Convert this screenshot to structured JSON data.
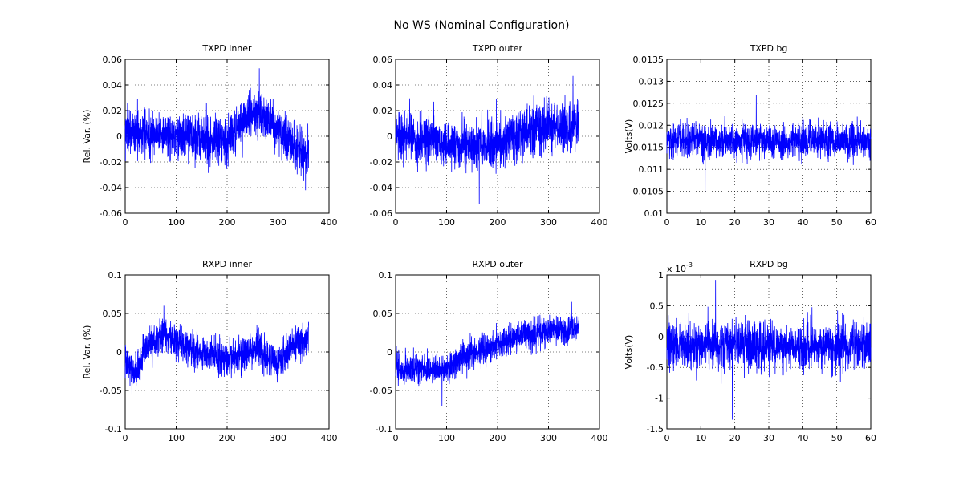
{
  "figure": {
    "title": "No WS (Nominal Configuration)"
  },
  "colors": {
    "trace": "#0000ff",
    "axes": "#000000",
    "background": "#ffffff"
  },
  "chart_data": [
    {
      "type": "line",
      "title": "TXPD inner",
      "ylabel": "Rel. Var. (%)",
      "xlim": [
        0,
        400
      ],
      "ylim": [
        -0.06,
        0.06
      ],
      "xticks": [
        "0",
        "100",
        "200",
        "300",
        "400"
      ],
      "yticks": [
        "-0.06",
        "-0.04",
        "-0.02",
        "0",
        "0.02",
        "0.04",
        "0.06"
      ],
      "grid": true,
      "series": [
        {
          "x_range": [
            0,
            360
          ],
          "trend": [
            [
              0,
              0.003
            ],
            [
              50,
              0.002
            ],
            [
              100,
              0.001
            ],
            [
              150,
              -0.002
            ],
            [
              200,
              -0.004
            ],
            [
              230,
              0.012
            ],
            [
              260,
              0.018
            ],
            [
              290,
              0.01
            ],
            [
              320,
              -0.005
            ],
            [
              360,
              -0.014
            ]
          ],
          "noise": 0.016,
          "peak_max": 0.053,
          "peak_min": -0.042
        }
      ]
    },
    {
      "type": "line",
      "title": "TXPD outer",
      "ylabel": "",
      "xlim": [
        0,
        400
      ],
      "ylim": [
        -0.06,
        0.06
      ],
      "xticks": [
        "0",
        "100",
        "200",
        "300",
        "400"
      ],
      "yticks": [
        "-0.06",
        "-0.04",
        "-0.02",
        "0",
        "0.02",
        "0.04",
        "0.06"
      ],
      "grid": true,
      "series": [
        {
          "x_range": [
            0,
            360
          ],
          "trend": [
            [
              0,
              0.002
            ],
            [
              50,
              -0.002
            ],
            [
              100,
              -0.006
            ],
            [
              150,
              -0.008
            ],
            [
              200,
              -0.005
            ],
            [
              250,
              0.002
            ],
            [
              300,
              0.007
            ],
            [
              360,
              0.009
            ]
          ],
          "noise": 0.017,
          "peak_max": 0.047,
          "peak_min": -0.053
        }
      ]
    },
    {
      "type": "line",
      "title": "TXPD bg",
      "ylabel": "Volts(V)",
      "xlim": [
        0,
        60
      ],
      "ylim": [
        0.01,
        0.0135
      ],
      "xticks": [
        "0",
        "10",
        "20",
        "30",
        "40",
        "50",
        "60"
      ],
      "yticks": [
        "0.01",
        "0.0105",
        "0.011",
        "0.0115",
        "0.012",
        "0.0125",
        "0.013",
        "0.0135"
      ],
      "grid": true,
      "series": [
        {
          "x_range": [
            0,
            60
          ],
          "trend": [
            [
              0,
              0.01165
            ],
            [
              60,
              0.01163
            ]
          ],
          "noise": 0.00035,
          "peak_max": 0.01268,
          "peak_min": 0.01048
        }
      ]
    },
    {
      "type": "line",
      "title": "RXPD inner",
      "ylabel": "Rel. Var. (%)",
      "xlim": [
        0,
        400
      ],
      "ylim": [
        -0.1,
        0.1
      ],
      "xticks": [
        "0",
        "100",
        "200",
        "300",
        "400"
      ],
      "yticks": [
        "-0.1",
        "-0.05",
        "0",
        "0.05",
        "0.1"
      ],
      "grid": true,
      "series": [
        {
          "x_range": [
            0,
            360
          ],
          "trend": [
            [
              0,
              -0.005
            ],
            [
              20,
              -0.03
            ],
            [
              40,
              0.005
            ],
            [
              80,
              0.025
            ],
            [
              120,
              0.005
            ],
            [
              200,
              -0.01
            ],
            [
              260,
              0.005
            ],
            [
              300,
              -0.015
            ],
            [
              330,
              0.01
            ],
            [
              360,
              0.015
            ]
          ],
          "noise": 0.02,
          "peak_max": 0.06,
          "peak_min": -0.065
        }
      ]
    },
    {
      "type": "line",
      "title": "RXPD outer",
      "ylabel": "",
      "xlim": [
        0,
        400
      ],
      "ylim": [
        -0.1,
        0.1
      ],
      "xticks": [
        "0",
        "100",
        "200",
        "300",
        "400"
      ],
      "yticks": [
        "-0.1",
        "-0.05",
        "0",
        "0.05",
        "0.1"
      ],
      "grid": true,
      "series": [
        {
          "x_range": [
            0,
            360
          ],
          "trend": [
            [
              0,
              -0.02
            ],
            [
              50,
              -0.025
            ],
            [
              100,
              -0.02
            ],
            [
              150,
              0.0
            ],
            [
              200,
              0.01
            ],
            [
              250,
              0.02
            ],
            [
              300,
              0.028
            ],
            [
              360,
              0.03
            ]
          ],
          "noise": 0.018,
          "peak_max": 0.065,
          "peak_min": -0.07
        }
      ]
    },
    {
      "type": "line",
      "title": "RXPD bg",
      "ylabel": "Volts(V)",
      "exponent_label": "x 10",
      "exponent_power": "-3",
      "xlim": [
        0,
        60
      ],
      "ylim": [
        -1.5,
        1
      ],
      "xticks": [
        "0",
        "10",
        "20",
        "30",
        "40",
        "50",
        "60"
      ],
      "yticks": [
        "-1.5",
        "-1",
        "-0.5",
        "0",
        "0.5",
        "1"
      ],
      "grid": true,
      "series": [
        {
          "x_range": [
            0,
            60
          ],
          "trend": [
            [
              0,
              -0.15
            ],
            [
              60,
              -0.15
            ]
          ],
          "noise": 0.35,
          "peak_max": 0.92,
          "peak_min": -1.35
        }
      ]
    }
  ]
}
